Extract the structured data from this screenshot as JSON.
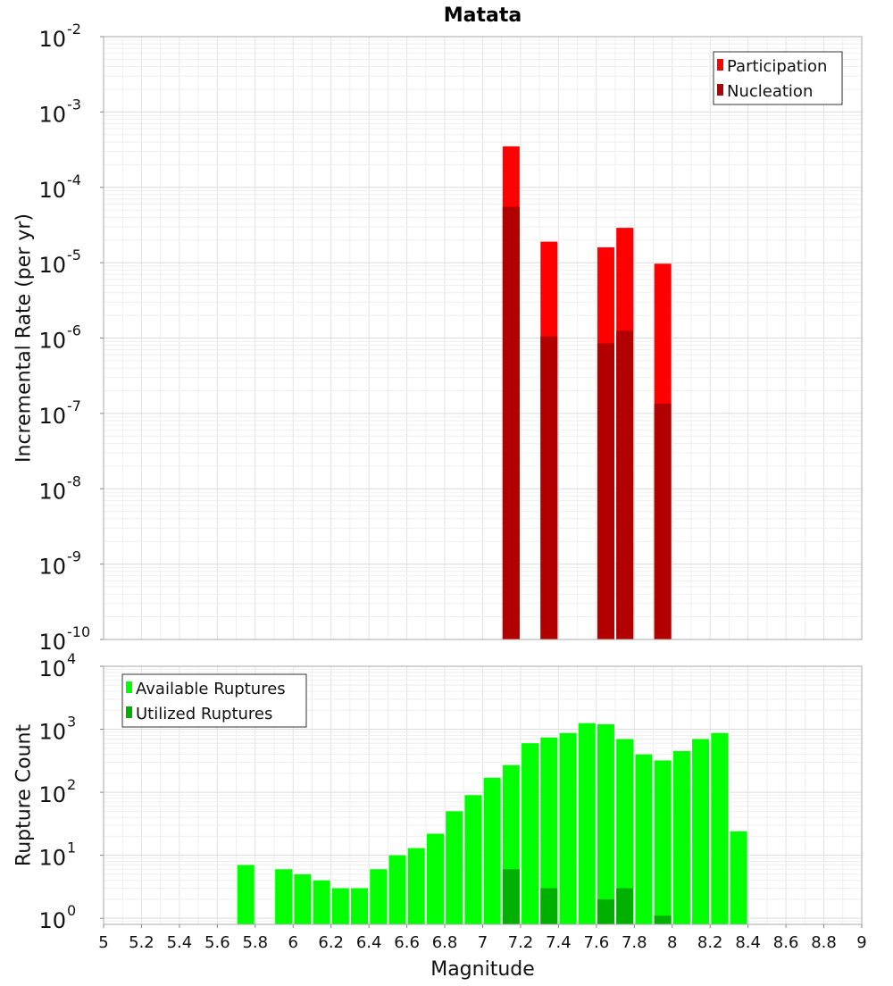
{
  "chart_data": [
    {
      "type": "bar",
      "title": "Matata",
      "ylabel": "Incremental Rate (per yr)",
      "xlabel": "",
      "y_scale": "log",
      "ylim": [
        1e-10,
        0.01
      ],
      "xlim": [
        5,
        9
      ],
      "grid": true,
      "legend_position": "top-right",
      "y_ticks": [
        {
          "base": "10",
          "exp": "-10"
        },
        {
          "base": "10",
          "exp": "-9"
        },
        {
          "base": "10",
          "exp": "-8"
        },
        {
          "base": "10",
          "exp": "-7"
        },
        {
          "base": "10",
          "exp": "-6"
        },
        {
          "base": "10",
          "exp": "-5"
        },
        {
          "base": "10",
          "exp": "-4"
        },
        {
          "base": "10",
          "exp": "-3"
        },
        {
          "base": "10",
          "exp": "-2"
        }
      ],
      "series": [
        {
          "name": "Participation",
          "color": "#ff0000",
          "x": [
            7.15,
            7.35,
            7.65,
            7.75,
            7.95
          ],
          "values": [
            0.00035,
            1.9e-05,
            1.6e-05,
            2.9e-05,
            9.7e-06
          ]
        },
        {
          "name": "Nucleation",
          "color": "#b20000",
          "x": [
            7.15,
            7.35,
            7.65,
            7.75,
            7.95
          ],
          "values": [
            5.5e-05,
            1.05e-06,
            8.5e-07,
            1.25e-06,
            1.35e-07
          ]
        }
      ]
    },
    {
      "type": "bar",
      "title": "",
      "xlabel": "Magnitude",
      "ylabel": "Rupture Count",
      "y_scale": "log",
      "ylim": [
        0.8,
        10000
      ],
      "xlim": [
        5,
        9
      ],
      "grid": true,
      "legend_position": "top-left",
      "x_ticks": [
        "5",
        "5.2",
        "5.4",
        "5.6",
        "5.8",
        "6",
        "6.2",
        "6.4",
        "6.6",
        "6.8",
        "7",
        "7.2",
        "7.4",
        "7.6",
        "7.8",
        "8",
        "8.2",
        "8.4",
        "8.6",
        "8.8",
        "9"
      ],
      "y_ticks": [
        {
          "base": "10",
          "exp": "0"
        },
        {
          "base": "10",
          "exp": "1"
        },
        {
          "base": "10",
          "exp": "2"
        },
        {
          "base": "10",
          "exp": "3"
        },
        {
          "base": "10",
          "exp": "4"
        }
      ],
      "series": [
        {
          "name": "Available Ruptures",
          "color": "#00ff00",
          "x": [
            5.75,
            5.95,
            6.05,
            6.15,
            6.25,
            6.35,
            6.45,
            6.55,
            6.65,
            6.75,
            6.85,
            6.95,
            7.05,
            7.15,
            7.25,
            7.35,
            7.45,
            7.55,
            7.65,
            7.75,
            7.85,
            7.95,
            8.05,
            8.15,
            8.25,
            8.35
          ],
          "values": [
            7,
            6,
            5,
            4,
            3,
            3,
            6,
            10,
            13,
            22,
            50,
            90,
            170,
            270,
            600,
            740,
            870,
            1250,
            1200,
            700,
            400,
            320,
            450,
            700,
            870,
            24
          ]
        },
        {
          "name": "Utilized Ruptures",
          "color": "#00b000",
          "x": [
            7.15,
            7.35,
            7.65,
            7.75,
            7.95
          ],
          "values": [
            6,
            3,
            2,
            3,
            1.1
          ]
        }
      ]
    }
  ]
}
